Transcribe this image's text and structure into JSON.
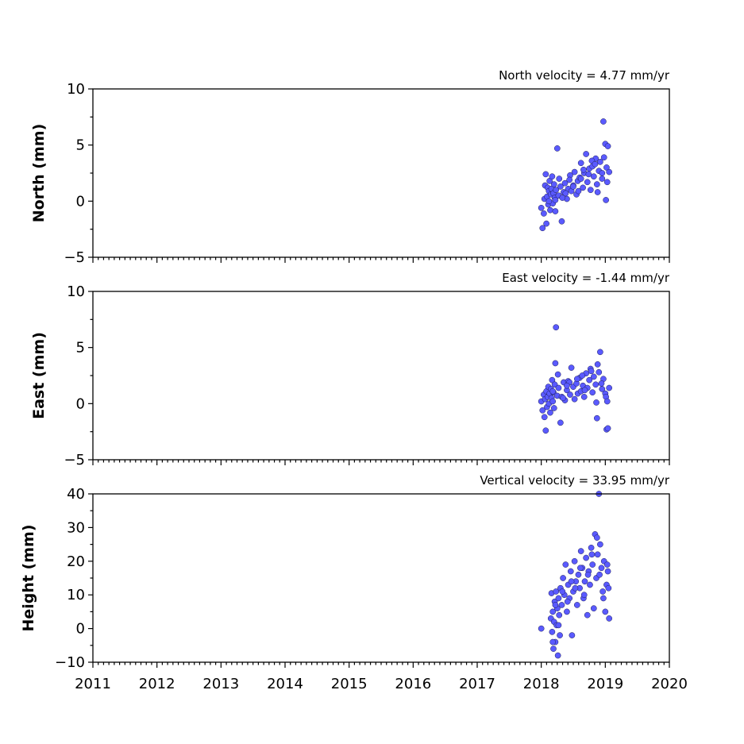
{
  "chart_data": [
    {
      "type": "scatter",
      "id": "north",
      "annotation": "North velocity = 4.77 mm/yr",
      "ylabel": "North (mm)",
      "xlim": [
        2011,
        2020
      ],
      "ylim": [
        -5,
        10
      ],
      "yticks": [
        -5,
        0,
        5,
        10
      ],
      "ytick_labels": [
        "−5",
        "0",
        "5",
        "10"
      ],
      "marker_color": "#5a5aff",
      "series": [
        {
          "x": [
            2018.0,
            2018.02,
            2018.04,
            2018.05,
            2018.06,
            2018.07,
            2018.08,
            2018.09,
            2018.1,
            2018.11,
            2018.12,
            2018.13,
            2018.14,
            2018.15,
            2018.16,
            2018.17,
            2018.18,
            2018.19,
            2018.2,
            2018.21,
            2018.22,
            2018.23,
            2018.25,
            2018.27,
            2018.3,
            2018.32,
            2018.35,
            2018.37,
            2018.4,
            2018.42,
            2018.45,
            2018.47,
            2018.5,
            2018.52,
            2018.55,
            2018.57,
            2018.6,
            2018.62,
            2018.65,
            2018.67,
            2018.7,
            2018.72,
            2018.75,
            2018.77,
            2018.8,
            2018.82,
            2018.85,
            2018.87,
            2018.9,
            2018.92,
            2018.95,
            2018.97,
            2019.0,
            2019.02,
            2019.04,
            2019.06,
            2018.22,
            2018.33,
            2018.44,
            2018.58,
            2018.66,
            2018.79,
            2018.88,
            2018.98,
            2019.01,
            2019.03,
            2018.12,
            2018.28,
            2018.38,
            2018.5,
            2018.62,
            2018.74,
            2018.84,
            2018.95
          ],
          "y": [
            -0.6,
            -2.4,
            -1.1,
            0.2,
            1.4,
            2.4,
            -2.0,
            0.4,
            1.2,
            -0.3,
            0.9,
            1.8,
            -0.8,
            0.6,
            1.1,
            2.2,
            -0.2,
            0.7,
            1.5,
            0.3,
            0.1,
            1.0,
            4.7,
            0.5,
            1.3,
            -1.8,
            0.8,
            1.6,
            0.2,
            1.1,
            2.3,
            0.9,
            1.4,
            2.6,
            0.6,
            1.8,
            2.1,
            3.4,
            1.2,
            2.5,
            4.2,
            1.7,
            2.9,
            1.0,
            3.1,
            2.2,
            3.8,
            1.5,
            2.7,
            3.5,
            2.0,
            7.1,
            5.1,
            3.0,
            4.9,
            2.6,
            -0.9,
            0.3,
            1.9,
            0.9,
            2.8,
            3.6,
            0.8,
            3.9,
            0.1,
            1.7,
            0.0,
            2.0,
            0.7,
            1.3,
            2.0,
            2.4,
            3.3,
            2.5
          ]
        }
      ]
    },
    {
      "type": "scatter",
      "id": "east",
      "annotation": "East velocity = -1.44 mm/yr",
      "ylabel": "East (mm)",
      "xlim": [
        2011,
        2020
      ],
      "ylim": [
        -5,
        10
      ],
      "yticks": [
        -5,
        0,
        5,
        10
      ],
      "ytick_labels": [
        "−5",
        "0",
        "5",
        "10"
      ],
      "marker_color": "#5a5aff",
      "series": [
        {
          "x": [
            2018.0,
            2018.02,
            2018.04,
            2018.05,
            2018.06,
            2018.07,
            2018.08,
            2018.09,
            2018.1,
            2018.11,
            2018.12,
            2018.13,
            2018.14,
            2018.15,
            2018.16,
            2018.17,
            2018.18,
            2018.19,
            2018.2,
            2018.21,
            2018.22,
            2018.23,
            2018.25,
            2018.27,
            2018.3,
            2018.32,
            2018.35,
            2018.37,
            2018.4,
            2018.42,
            2018.45,
            2018.47,
            2018.5,
            2018.52,
            2018.55,
            2018.57,
            2018.6,
            2018.62,
            2018.65,
            2018.67,
            2018.7,
            2018.72,
            2018.75,
            2018.77,
            2018.8,
            2018.82,
            2018.85,
            2018.87,
            2018.9,
            2018.92,
            2018.95,
            2018.97,
            2019.0,
            2019.02,
            2019.04,
            2019.06,
            2018.26,
            2018.34,
            2018.44,
            2018.56,
            2018.68,
            2018.78,
            2018.86,
            2018.94,
            2019.01,
            2019.03,
            2018.18,
            2018.4,
            2018.64,
            2018.88
          ],
          "y": [
            0.2,
            -0.6,
            0.8,
            -1.2,
            0.4,
            -2.4,
            1.1,
            -0.3,
            0.6,
            1.5,
            0.0,
            0.9,
            -0.8,
            1.3,
            0.5,
            2.1,
            0.2,
            1.0,
            -0.4,
            1.7,
            3.6,
            6.8,
            0.7,
            1.4,
            -1.7,
            0.6,
            1.9,
            0.3,
            1.2,
            2.0,
            0.8,
            3.2,
            1.5,
            0.4,
            1.8,
            0.9,
            2.3,
            1.1,
            1.6,
            0.6,
            2.7,
            1.4,
            2.1,
            3.1,
            1.0,
            2.4,
            1.7,
            -1.3,
            2.8,
            4.6,
            1.3,
            2.2,
            0.9,
            -2.3,
            -2.2,
            1.4,
            2.6,
            0.5,
            1.9,
            2.2,
            1.2,
            2.9,
            0.1,
            1.8,
            0.6,
            0.2,
            1.1,
            1.6,
            2.5,
            3.5
          ]
        }
      ]
    },
    {
      "type": "scatter",
      "id": "height",
      "annotation": "Vertical velocity = 33.95 mm/yr",
      "ylabel": "Height (mm)",
      "xlim": [
        2011,
        2020
      ],
      "ylim": [
        -10,
        40
      ],
      "yticks": [
        -10,
        0,
        10,
        20,
        30,
        40
      ],
      "ytick_labels": [
        "−10",
        "0",
        "10",
        "20",
        "30",
        "40"
      ],
      "xticks": [
        2011,
        2012,
        2013,
        2014,
        2015,
        2016,
        2017,
        2018,
        2019,
        2020
      ],
      "xtick_labels": [
        "2011",
        "2012",
        "2013",
        "2014",
        "2015",
        "2016",
        "2017",
        "2018",
        "2019",
        "2020"
      ],
      "marker_color": "#5a5aff",
      "series": [
        {
          "x": [
            2018.0,
            2018.15,
            2018.16,
            2018.17,
            2018.18,
            2018.19,
            2018.2,
            2018.21,
            2018.22,
            2018.23,
            2018.24,
            2018.25,
            2018.26,
            2018.27,
            2018.28,
            2018.29,
            2018.3,
            2018.32,
            2018.34,
            2018.36,
            2018.38,
            2018.4,
            2018.42,
            2018.44,
            2018.46,
            2018.48,
            2018.5,
            2018.52,
            2018.54,
            2018.56,
            2018.58,
            2018.6,
            2018.62,
            2018.64,
            2018.66,
            2018.68,
            2018.7,
            2018.72,
            2018.74,
            2018.76,
            2018.78,
            2018.8,
            2018.82,
            2018.84,
            2018.86,
            2018.88,
            2018.9,
            2018.92,
            2018.94,
            2018.96,
            2018.98,
            2019.0,
            2019.02,
            2019.04,
            2019.06,
            2018.18,
            2018.22,
            2018.27,
            2018.33,
            2018.41,
            2018.47,
            2018.53,
            2018.61,
            2018.67,
            2018.73,
            2018.79,
            2018.87,
            2018.91,
            2018.97,
            2019.03,
            2019.05
          ],
          "y": [
            0.0,
            3.0,
            10.5,
            -1.0,
            5.0,
            -6.0,
            2.0,
            8.0,
            -4.0,
            11.0,
            1.0,
            6.0,
            -8.0,
            9.0,
            4.0,
            -2.0,
            12.0,
            7.0,
            15.0,
            10.0,
            19.0,
            5.0,
            13.0,
            9.0,
            17.0,
            -2.0,
            11.0,
            20.0,
            14.0,
            7.0,
            16.0,
            12.0,
            23.0,
            18.0,
            9.0,
            14.0,
            21.0,
            4.0,
            17.0,
            13.0,
            24.0,
            19.0,
            6.0,
            28.0,
            15.0,
            22.0,
            40.0,
            25.0,
            18.0,
            11.0,
            20.0,
            5.0,
            13.0,
            17.0,
            3.0,
            -4.0,
            7.0,
            1.0,
            11.0,
            8.0,
            14.0,
            12.0,
            18.0,
            10.0,
            16.0,
            22.0,
            27.0,
            16.0,
            9.0,
            19.0,
            12.0
          ]
        }
      ]
    }
  ]
}
